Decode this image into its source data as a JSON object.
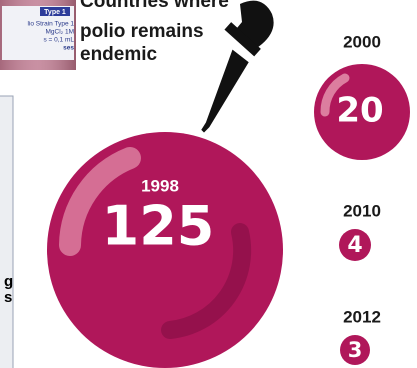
{
  "photo_label": {
    "badge": "Type 1",
    "lines": [
      "lio Strain Type 1",
      "MgCl₂ 1M",
      "s = 0,1 mL",
      "ses"
    ]
  },
  "title_lines": [
    "Countries where",
    "polio remains",
    "endemic"
  ],
  "side_text": [
    "g",
    "s"
  ],
  "entries": [
    {
      "year": "1998",
      "count": 125
    },
    {
      "year": "2000",
      "count": 20
    },
    {
      "year": "2010",
      "count": 4
    },
    {
      "year": "2012",
      "count": 3
    }
  ]
}
